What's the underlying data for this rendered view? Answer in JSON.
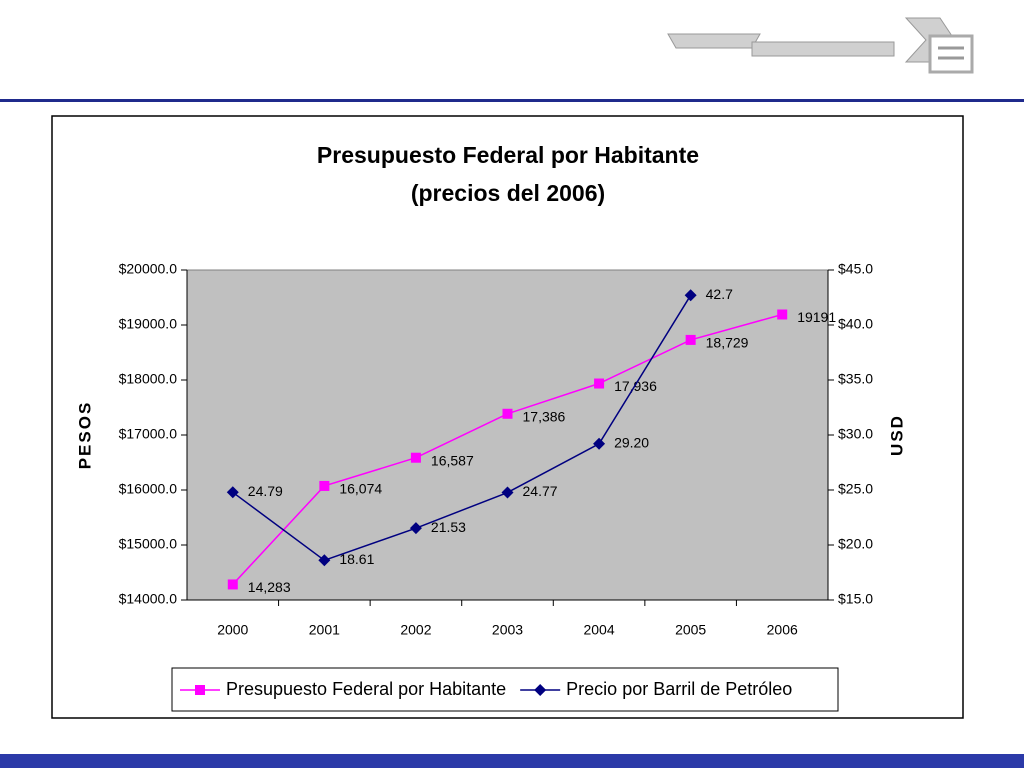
{
  "chart_data": {
    "type": "line",
    "title": "Presupuesto Federal por Habitante",
    "subtitle": "(precios del 2006)",
    "y_label": "PESOS",
    "y2_label": "USD",
    "categories": [
      "2000",
      "2001",
      "2002",
      "2003",
      "2004",
      "2005",
      "2006"
    ],
    "series": [
      {
        "name": "Presupuesto Federal por Habitante",
        "color": "#ff00ff",
        "marker": "square",
        "values": [
          14283,
          16074,
          16587,
          17386,
          17936,
          18729,
          19191
        ],
        "value_labels": [
          "14,283",
          "16,074",
          "16,587",
          "17,386",
          "17,936",
          "18,729",
          "19191"
        ]
      },
      {
        "name": "Precio por Barril de Petróleo",
        "color": "#000080",
        "marker": "diamond",
        "axis": "y2",
        "values": [
          24.79,
          18.61,
          21.53,
          24.77,
          29.2,
          42.7,
          null
        ],
        "value_labels": [
          "24.79",
          "18.61",
          "21.53",
          "24.77",
          "29.20",
          "42.7",
          null
        ]
      }
    ],
    "ylim": [
      14000,
      20000
    ],
    "yticks": [
      {
        "value": 14000,
        "label": "$14000.0"
      },
      {
        "value": 15000,
        "label": "$15000.0"
      },
      {
        "value": 16000,
        "label": "$16000.0"
      },
      {
        "value": 17000,
        "label": "$17000.0"
      },
      {
        "value": 18000,
        "label": "$18000.0"
      },
      {
        "value": 19000,
        "label": "$19000.0"
      },
      {
        "value": 20000,
        "label": "$20000.0"
      }
    ],
    "y2lim": [
      15,
      45
    ],
    "y2ticks": [
      {
        "value": 15,
        "label": "$15.0"
      },
      {
        "value": 20,
        "label": "$20.0"
      },
      {
        "value": 25,
        "label": "$25.0"
      },
      {
        "value": 30,
        "label": "$30.0"
      },
      {
        "value": 35,
        "label": "$35.0"
      },
      {
        "value": 40,
        "label": "$40.0"
      },
      {
        "value": 45,
        "label": "$45.0"
      }
    ],
    "legend": "bottom",
    "plot_background": "#c0c0c0"
  }
}
